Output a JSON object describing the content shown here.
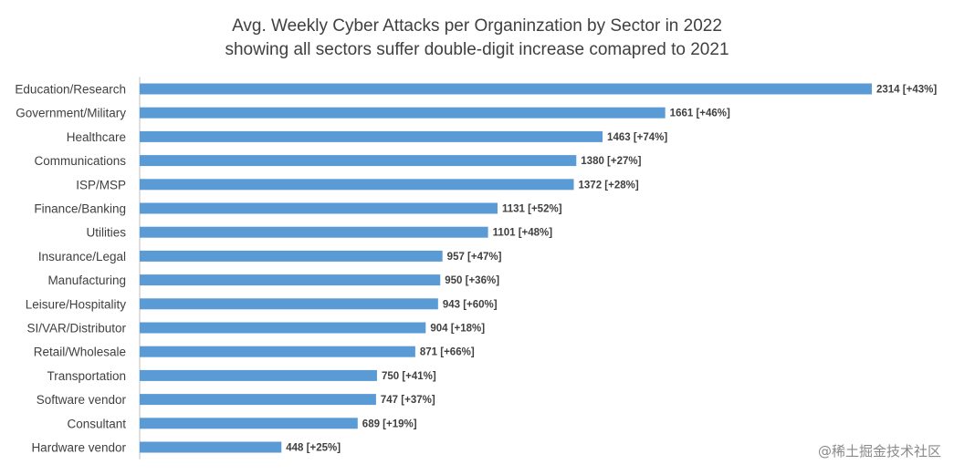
{
  "chart_data": {
    "type": "bar",
    "orientation": "horizontal",
    "title": "Avg. Weekly Cyber Attacks per Organinzation by Sector in 2022",
    "subtitle": "showing all sectors suffer double-digit increase comapred to 2021",
    "categories": [
      "Education/Research",
      "Government/Military",
      "Healthcare",
      "Communications",
      "ISP/MSP",
      "Finance/Banking",
      "Utilities",
      "Insurance/Legal",
      "Manufacturing",
      "Leisure/Hospitality",
      "SI/VAR/Distributor",
      "Retail/Wholesale",
      "Transportation",
      "Software vendor",
      "Consultant",
      "Hardware vendor"
    ],
    "values": [
      2314,
      1661,
      1463,
      1380,
      1372,
      1131,
      1101,
      957,
      950,
      943,
      904,
      871,
      750,
      747,
      689,
      448
    ],
    "data_labels": [
      "2314 [+43%]",
      "1661 [+46%]",
      "1463 [+74%]",
      "1380 [+27%]",
      "1372 [+28%]",
      "1131 [+52%]",
      "1101 [+48%]",
      "957 [+47%]",
      "950 [+36%]",
      "943 [+60%]",
      "904 [+18%]",
      "871 [+66%]",
      "750 [+41%]",
      "747 [+37%]",
      "689 [+19%]",
      "448 [+25%]"
    ],
    "xlim": [
      0,
      2314
    ],
    "grid": false,
    "bar_color": "#5b9bd5",
    "axis_color": "#bfbfbf",
    "label_color": "#404040"
  },
  "watermark": "@稀土掘金技术社区"
}
